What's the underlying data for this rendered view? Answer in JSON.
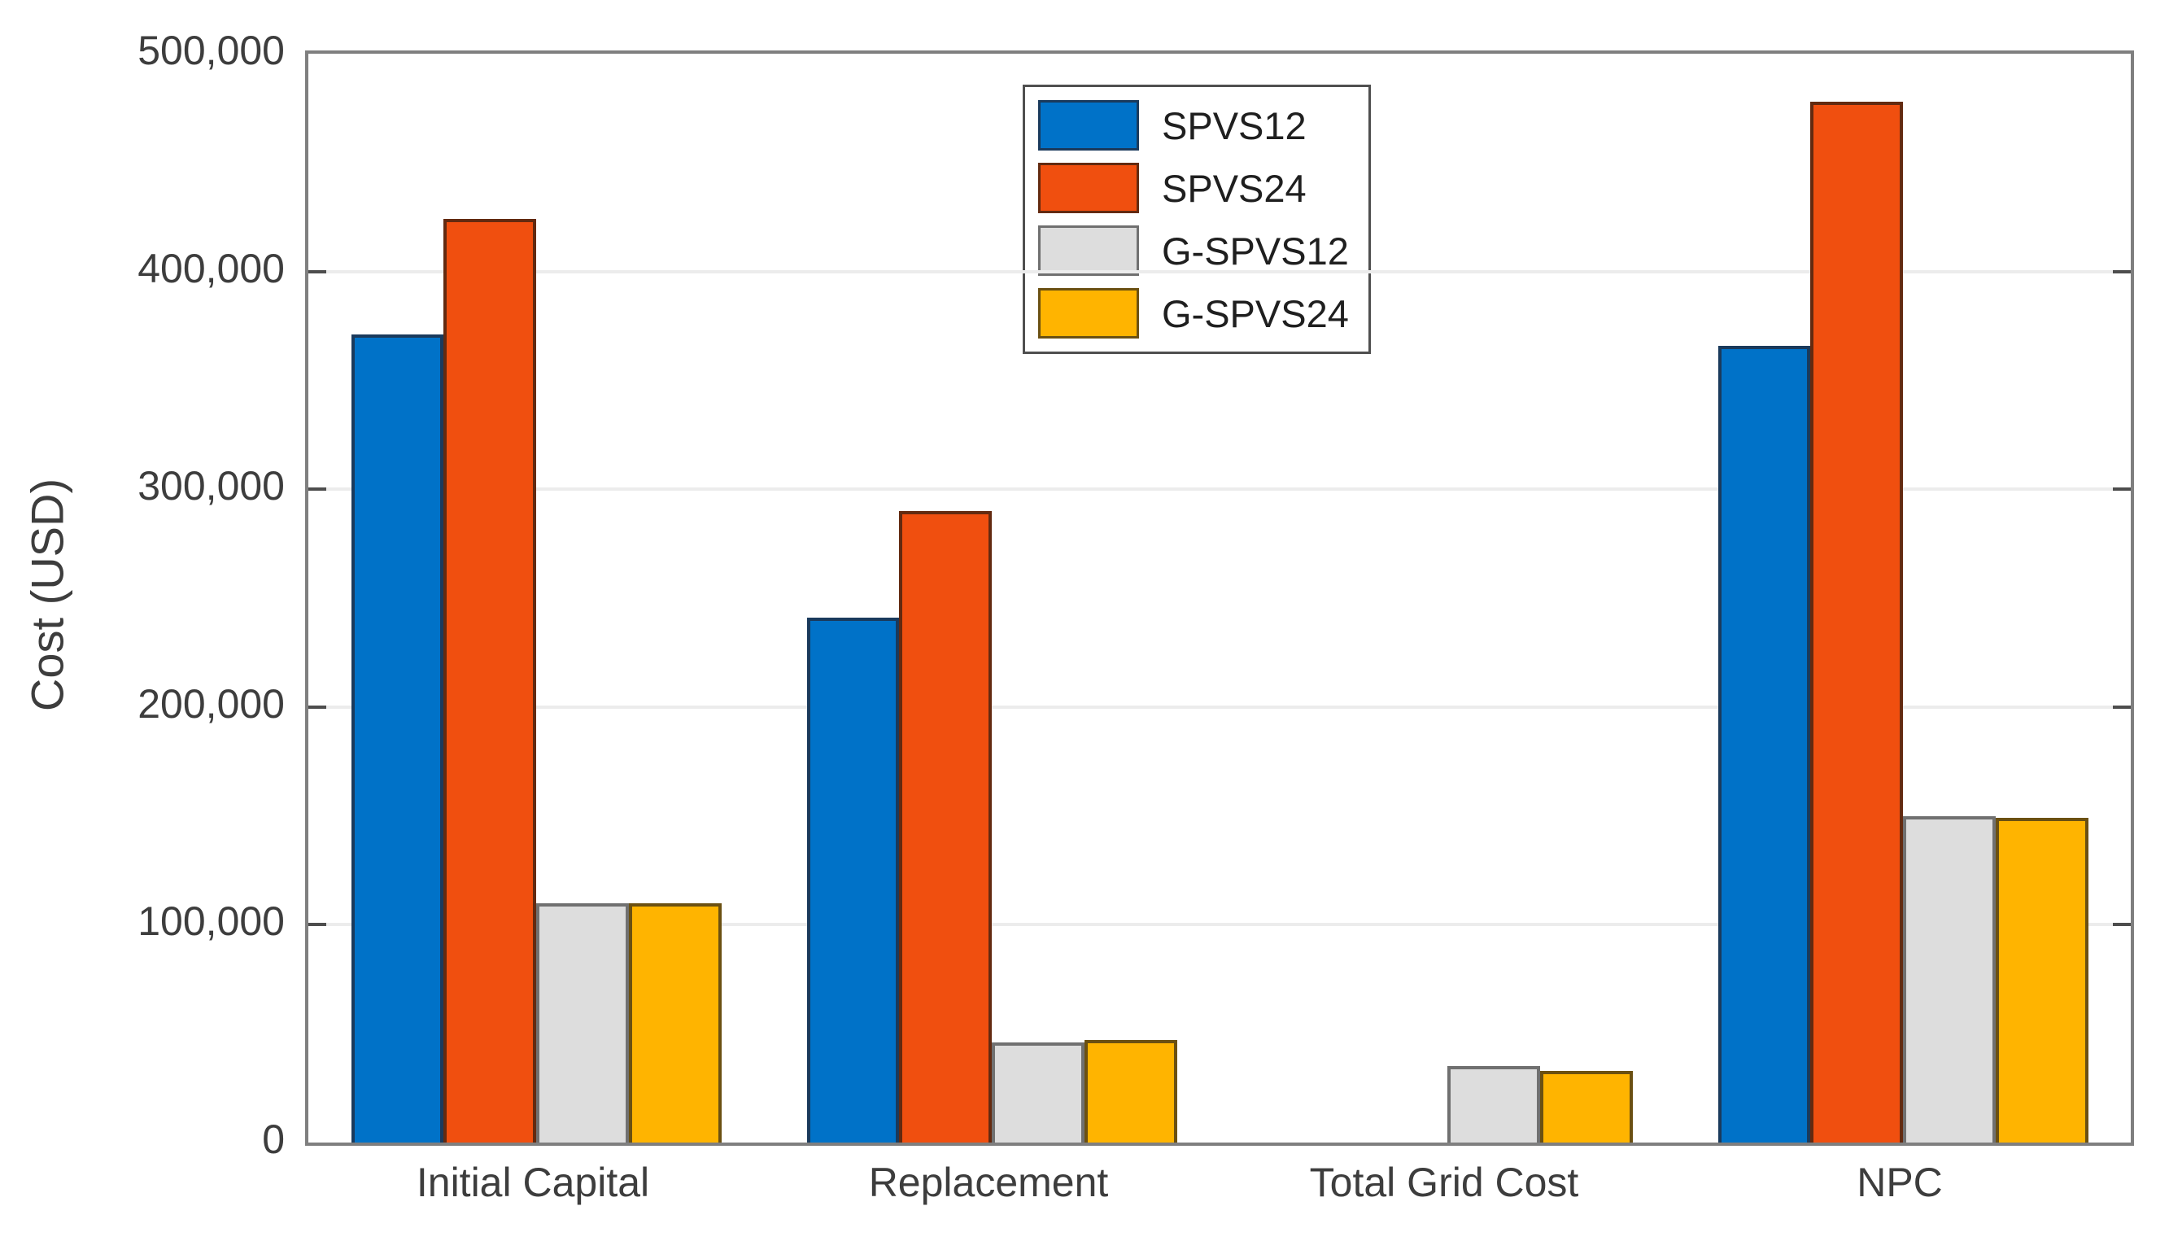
{
  "figure": {
    "background": "#ffffff",
    "axis_color": "#7f7f7f",
    "grid_color": "#ececec",
    "text_color": "#3d3d3d"
  },
  "chart_data": {
    "type": "bar",
    "title": "",
    "xlabel": "",
    "ylabel": "Cost (USD)",
    "ylim": [
      0,
      500000
    ],
    "ytick_values": [
      0,
      100000,
      200000,
      300000,
      400000,
      500000
    ],
    "ytick_labels": [
      "0",
      "100,000",
      "200,000",
      "300,000",
      "400,000",
      "500,000"
    ],
    "categories": [
      "Initial Capital",
      "Replacement",
      "Total Grid Cost",
      "NPC"
    ],
    "grid": true,
    "legend_position": "top-center",
    "series": [
      {
        "name": "SPVS12",
        "color": "#0072C8",
        "edge": "#1a3a5c",
        "values": [
          371000,
          241000,
          0,
          366000
        ]
      },
      {
        "name": "SPVS24",
        "color": "#F04F0F",
        "edge": "#632a10",
        "values": [
          424000,
          290000,
          0,
          478000
        ]
      },
      {
        "name": "G-SPVS12",
        "color": "#DDDDDD",
        "edge": "#707070",
        "values": [
          110000,
          46000,
          35000,
          150000
        ]
      },
      {
        "name": "G-SPVS24",
        "color": "#FFB400",
        "edge": "#6b5012",
        "values": [
          110000,
          47000,
          33000,
          149000
        ]
      }
    ]
  }
}
